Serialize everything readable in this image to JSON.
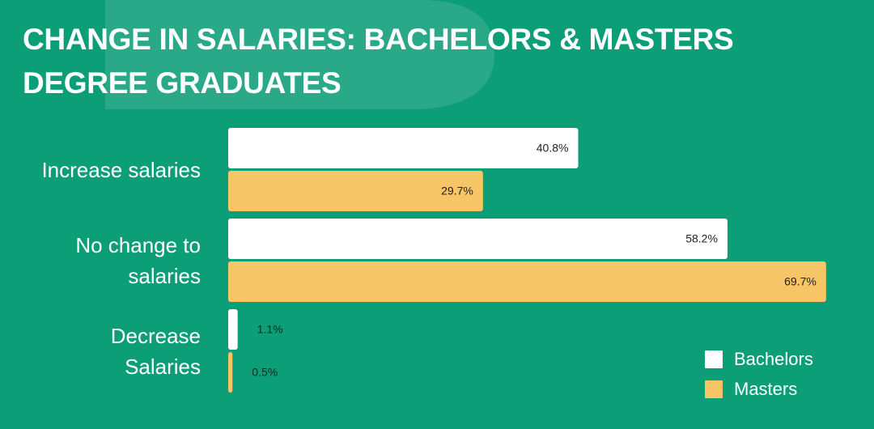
{
  "chart_data": {
    "type": "bar",
    "orientation": "horizontal",
    "title": "CHANGE IN SALARIES: BACHELORS & MASTERS DEGREE GRADUATES",
    "categories": [
      "Increase salaries",
      "No change to salaries",
      "Decrease Salaries"
    ],
    "series": [
      {
        "name": "Bachelors",
        "color": "#ffffff",
        "values": [
          40.8,
          58.2,
          1.1
        ],
        "value_labels": [
          "40.8%",
          "58.2%",
          "1.1%"
        ]
      },
      {
        "name": "Masters",
        "color": "#f5c566",
        "values": [
          29.7,
          69.7,
          0.5
        ],
        "value_labels": [
          "29.7%",
          "69.7%",
          "0.5%"
        ]
      }
    ],
    "xlim": [
      0,
      70
    ],
    "legend": "lower right"
  }
}
